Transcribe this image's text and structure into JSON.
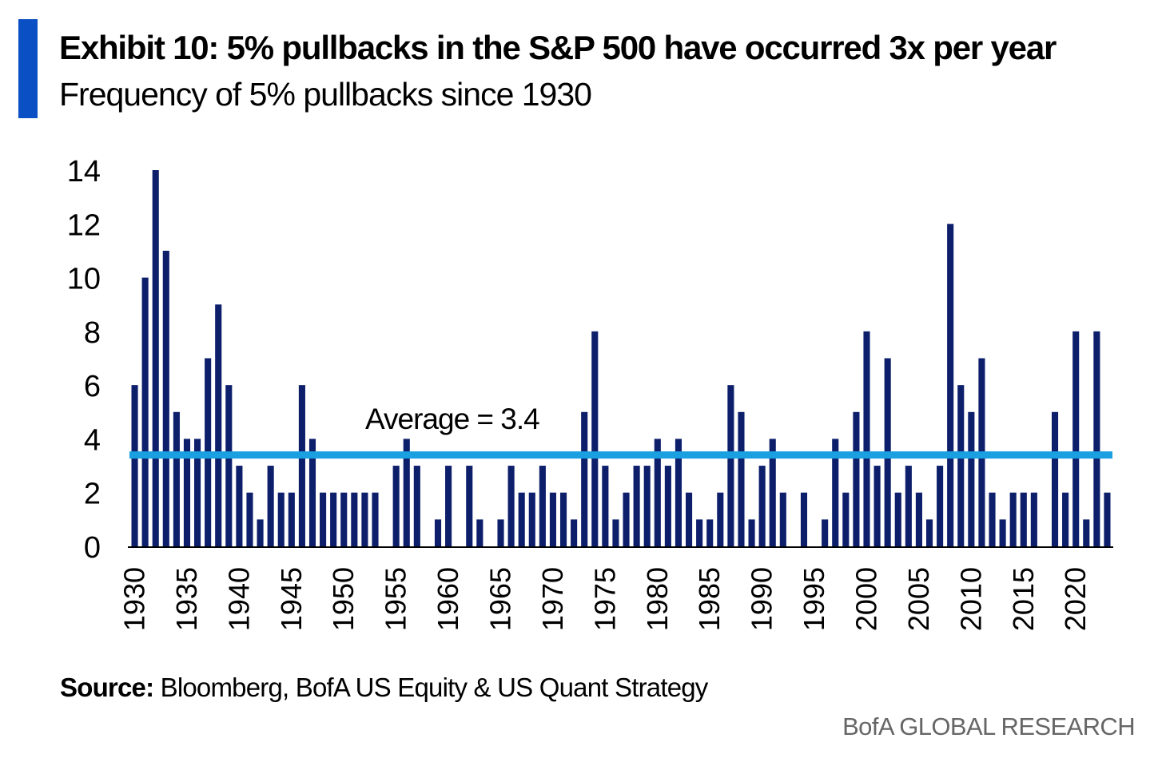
{
  "header": {
    "title": "Exhibit 10: 5% pullbacks in the S&P 500 have occurred 3x per year",
    "subtitle": "Frequency of 5% pullbacks since 1930"
  },
  "footer": {
    "source_label": "Source:",
    "source_text": "Bloomberg, BofA US Equity & US Quant Strategy",
    "brand": "BofA GLOBAL RESEARCH"
  },
  "colors": {
    "accent": "#0a4fc4",
    "bar": "#0d1f6b",
    "average_line": "#1aa0e0"
  },
  "chart_data": {
    "type": "bar",
    "title": "Exhibit 10: 5% pullbacks in the S&P 500 have occurred 3x per year",
    "subtitle": "Frequency of 5% pullbacks since 1930",
    "xlabel": "",
    "ylabel": "",
    "ylim": [
      0,
      14
    ],
    "yticks": [
      "0",
      "2",
      "4",
      "6",
      "8",
      "10",
      "12",
      "14"
    ],
    "xticks": [
      "1930",
      "1935",
      "1940",
      "1945",
      "1950",
      "1955",
      "1960",
      "1965",
      "1970",
      "1975",
      "1980",
      "1985",
      "1990",
      "1995",
      "2000",
      "2005",
      "2010",
      "2015",
      "2020"
    ],
    "grid": false,
    "legend": "none",
    "x_start": 1930,
    "x_end": 2023,
    "values": [
      6,
      10,
      14,
      11,
      5,
      4,
      4,
      7,
      9,
      6,
      3,
      2,
      1,
      3,
      2,
      2,
      6,
      4,
      2,
      2,
      2,
      2,
      2,
      2,
      0,
      3,
      4,
      3,
      0,
      1,
      3,
      0,
      3,
      1,
      0,
      1,
      3,
      2,
      2,
      3,
      2,
      2,
      1,
      5,
      8,
      3,
      1,
      2,
      3,
      3,
      4,
      3,
      4,
      2,
      1,
      1,
      2,
      6,
      5,
      1,
      3,
      4,
      2,
      0,
      2,
      0,
      1,
      4,
      2,
      5,
      8,
      3,
      7,
      2,
      3,
      2,
      1,
      3,
      12,
      6,
      5,
      7,
      2,
      1,
      2,
      2,
      2,
      0,
      5,
      2,
      8,
      1,
      8,
      2
    ],
    "average": 3.4,
    "average_label": "Average = 3.4"
  }
}
